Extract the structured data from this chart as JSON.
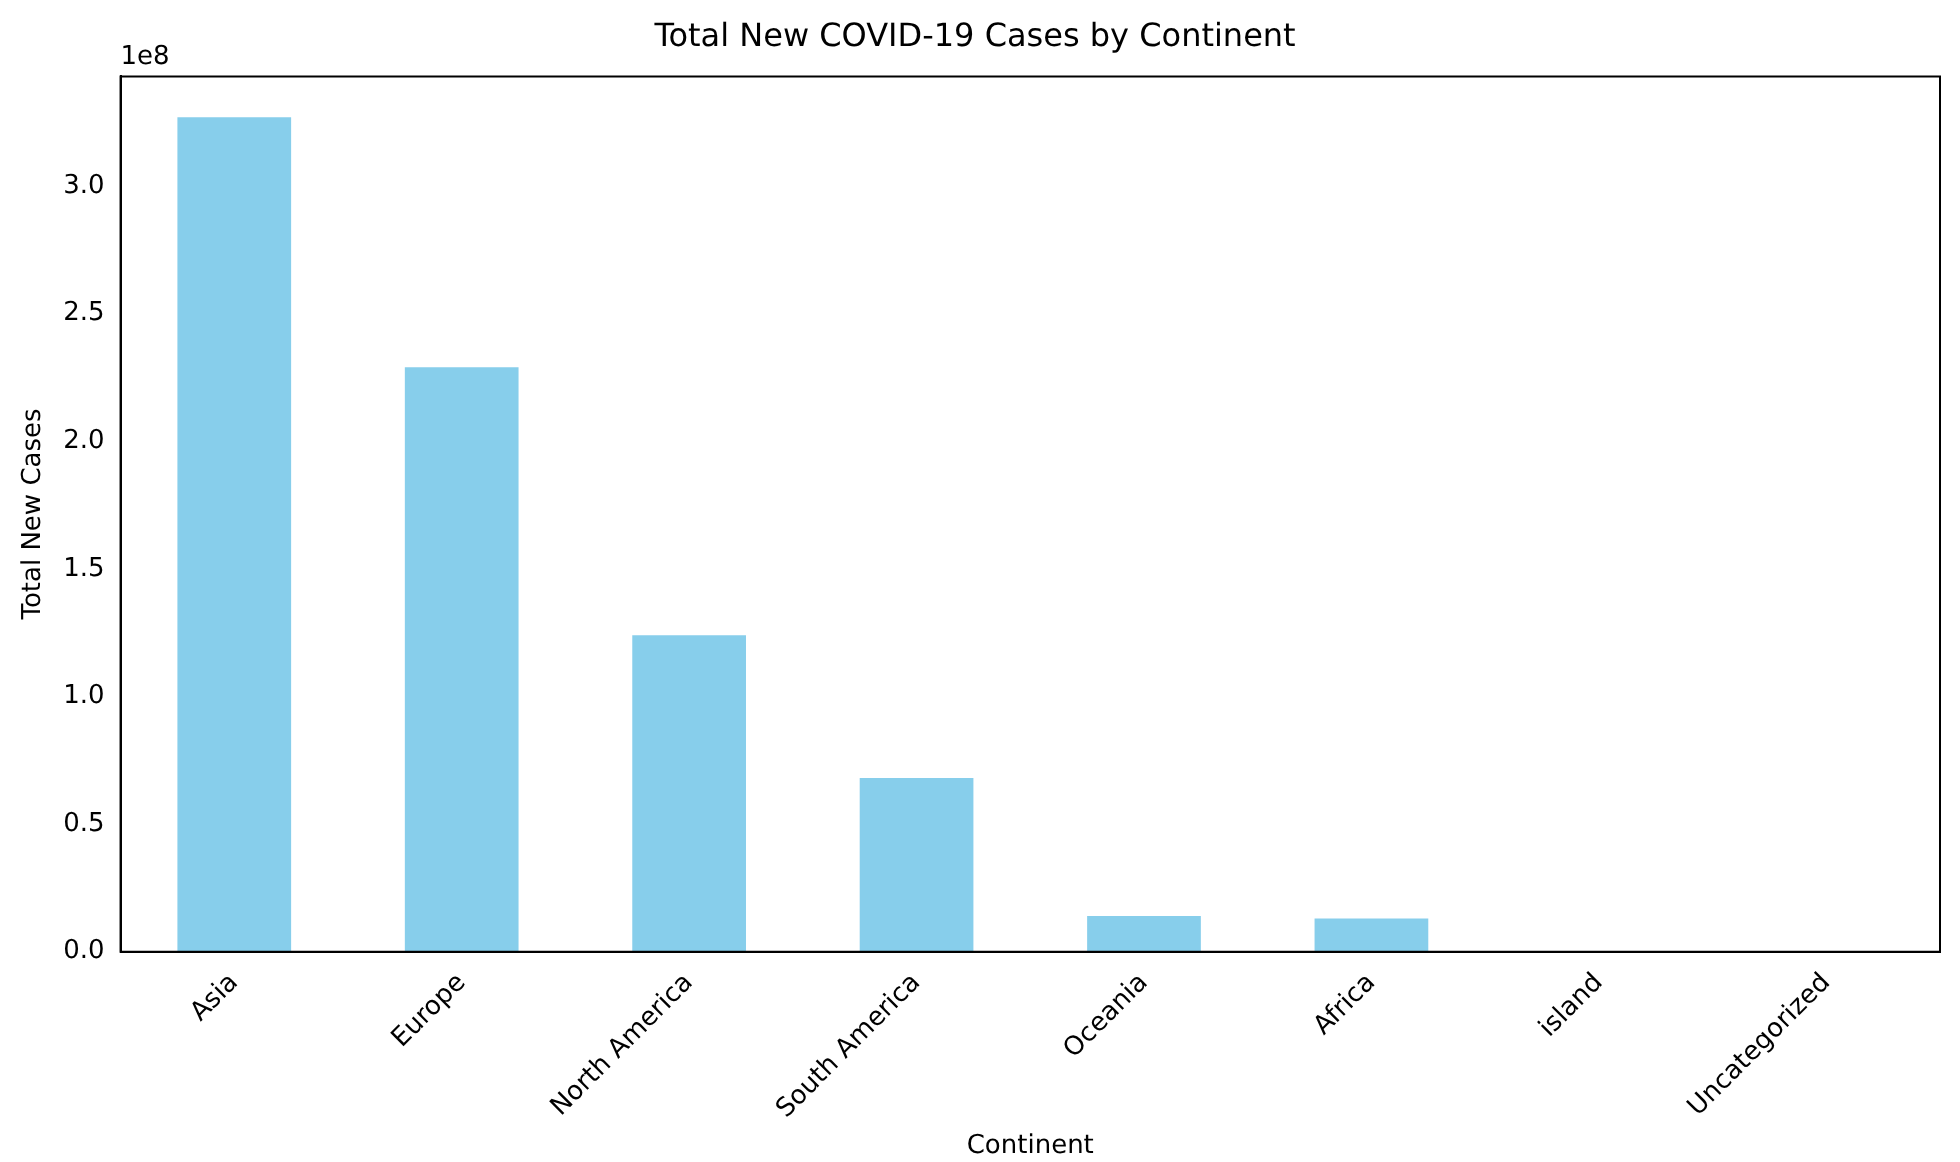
{
  "chart_data": {
    "type": "bar",
    "title": "Total New COVID-19 Cases by Continent",
    "xlabel": "Continent",
    "ylabel": "Total New Cases",
    "annotations": [
      "1e8"
    ],
    "categories": [
      "Asia",
      "Europe",
      "North America",
      "South America",
      "Oceania",
      "Africa",
      "island",
      "Uncategorized"
    ],
    "values": [
      3.27,
      2.29,
      1.24,
      0.68,
      0.14,
      0.13,
      0,
      0
    ],
    "color": "#87ceeb",
    "ylim": [
      0,
      3.43
    ],
    "yticks": [
      {
        "value": 0,
        "label": "0.0"
      },
      {
        "value": 0.5,
        "label": "0.5"
      },
      {
        "value": 1,
        "label": "1.0"
      },
      {
        "value": 1.5,
        "label": "1.5"
      },
      {
        "value": 2,
        "label": "2.0"
      },
      {
        "value": 2.5,
        "label": "2.5"
      },
      {
        "value": 3,
        "label": "3.0"
      }
    ],
    "grid": false,
    "legend": false
  }
}
